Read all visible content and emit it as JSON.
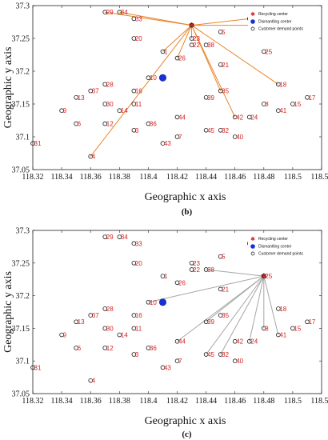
{
  "chart_data": [
    {
      "type": "scatter",
      "panel": "(b)",
      "xlabel": "Geographic x axis",
      "ylabel": "Geographic y axis",
      "xlim": [
        118.32,
        118.52
      ],
      "ylim": [
        37.05,
        37.3
      ],
      "xticks": [
        "118.32",
        "118.34",
        "118.36",
        "118.38",
        "118.4",
        "118.42",
        "118.44",
        "118.46",
        "118.48",
        "118.5",
        "118.52"
      ],
      "yticks": [
        "37.3",
        "37.25",
        "37.2",
        "37.15",
        "37.1",
        "37.05"
      ],
      "legend_placement": "top-right",
      "legend": [
        "Recycling center",
        "Dismantling center",
        "Customer demand points"
      ],
      "connection_color": "#e8852a",
      "recycling_center": [
        118.43,
        37.27
      ],
      "dismantling_center": [
        118.41,
        37.19
      ],
      "points": [
        {
          "l": "29",
          "x": 118.37,
          "y": 37.29
        },
        {
          "l": "34",
          "x": 118.38,
          "y": 37.29
        },
        {
          "l": "33",
          "x": 118.39,
          "y": 37.28
        },
        {
          "l": "19",
          "x": 118.47,
          "y": 37.28
        },
        {
          "l": "27",
          "x": 118.48,
          "y": 37.27
        },
        {
          "l": "20",
          "x": 118.39,
          "y": 37.25
        },
        {
          "l": "23",
          "x": 118.43,
          "y": 37.25
        },
        {
          "l": "5",
          "x": 118.45,
          "y": 37.26
        },
        {
          "l": "22",
          "x": 118.43,
          "y": 37.24
        },
        {
          "l": "38",
          "x": 118.44,
          "y": 37.24
        },
        {
          "l": "1",
          "x": 118.41,
          "y": 37.23
        },
        {
          "l": "26",
          "x": 118.42,
          "y": 37.22
        },
        {
          "l": "25",
          "x": 118.48,
          "y": 37.23
        },
        {
          "l": "21",
          "x": 118.45,
          "y": 37.21
        },
        {
          "l": "10",
          "x": 118.4,
          "y": 37.19
        },
        {
          "l": "18",
          "x": 118.49,
          "y": 37.18
        },
        {
          "l": "28",
          "x": 118.37,
          "y": 37.18
        },
        {
          "l": "37",
          "x": 118.36,
          "y": 37.17
        },
        {
          "l": "16",
          "x": 118.39,
          "y": 37.17
        },
        {
          "l": "35",
          "x": 118.45,
          "y": 37.17
        },
        {
          "l": "13",
          "x": 118.35,
          "y": 37.16
        },
        {
          "l": "30",
          "x": 118.37,
          "y": 37.15
        },
        {
          "l": "11",
          "x": 118.39,
          "y": 37.15
        },
        {
          "l": "39",
          "x": 118.44,
          "y": 37.16
        },
        {
          "l": "8",
          "x": 118.48,
          "y": 37.15
        },
        {
          "l": "41",
          "x": 118.49,
          "y": 37.14
        },
        {
          "l": "15",
          "x": 118.5,
          "y": 37.15
        },
        {
          "l": "17",
          "x": 118.51,
          "y": 37.16
        },
        {
          "l": "9",
          "x": 118.34,
          "y": 37.14
        },
        {
          "l": "14",
          "x": 118.38,
          "y": 37.14
        },
        {
          "l": "6",
          "x": 118.35,
          "y": 37.12
        },
        {
          "l": "12",
          "x": 118.37,
          "y": 37.12
        },
        {
          "l": "36",
          "x": 118.4,
          "y": 37.12
        },
        {
          "l": "44",
          "x": 118.42,
          "y": 37.13
        },
        {
          "l": "42",
          "x": 118.46,
          "y": 37.13
        },
        {
          "l": "24",
          "x": 118.47,
          "y": 37.13
        },
        {
          "l": "3",
          "x": 118.39,
          "y": 37.11
        },
        {
          "l": "45",
          "x": 118.44,
          "y": 37.11
        },
        {
          "l": "32",
          "x": 118.45,
          "y": 37.11
        },
        {
          "l": "7",
          "x": 118.42,
          "y": 37.1
        },
        {
          "l": "40",
          "x": 118.46,
          "y": 37.1
        },
        {
          "l": "31",
          "x": 118.32,
          "y": 37.09
        },
        {
          "l": "43",
          "x": 118.41,
          "y": 37.09
        },
        {
          "l": "4",
          "x": 118.36,
          "y": 37.07
        }
      ],
      "connections": [
        "29",
        "34",
        "19",
        "27",
        "18",
        "35",
        "42",
        "23",
        "26",
        "1",
        "4"
      ]
    },
    {
      "type": "scatter",
      "panel": "(c)",
      "xlabel": "Geographic x axis",
      "ylabel": "Geographic y axis",
      "xlim": [
        118.32,
        118.52
      ],
      "ylim": [
        37.05,
        37.3
      ],
      "xticks": [
        "118.32",
        "118.34",
        "118.36",
        "118.38",
        "118.4",
        "118.42",
        "118.44",
        "118.46",
        "118.48",
        "118.5",
        "118.52"
      ],
      "yticks": [
        "37.3",
        "37.25",
        "37.2",
        "37.15",
        "37.1",
        "37.05"
      ],
      "legend_placement": "top-right",
      "legend": [
        "Recycling center",
        "Dismantling center",
        "Customer demand points"
      ],
      "connection_color": "#a6a6a6",
      "recycling_center": [
        118.48,
        37.23
      ],
      "dismantling_center": [
        118.41,
        37.19
      ],
      "points": [
        {
          "l": "29",
          "x": 118.37,
          "y": 37.29
        },
        {
          "l": "34",
          "x": 118.38,
          "y": 37.29
        },
        {
          "l": "33",
          "x": 118.39,
          "y": 37.28
        },
        {
          "l": "19",
          "x": 118.47,
          "y": 37.28
        },
        {
          "l": "27",
          "x": 118.48,
          "y": 37.27
        },
        {
          "l": "20",
          "x": 118.39,
          "y": 37.25
        },
        {
          "l": "23",
          "x": 118.43,
          "y": 37.25
        },
        {
          "l": "5",
          "x": 118.45,
          "y": 37.26
        },
        {
          "l": "22",
          "x": 118.43,
          "y": 37.24
        },
        {
          "l": "38",
          "x": 118.44,
          "y": 37.24
        },
        {
          "l": "1",
          "x": 118.41,
          "y": 37.23
        },
        {
          "l": "26",
          "x": 118.42,
          "y": 37.22
        },
        {
          "l": "25",
          "x": 118.48,
          "y": 37.23
        },
        {
          "l": "21",
          "x": 118.45,
          "y": 37.21
        },
        {
          "l": "10",
          "x": 118.4,
          "y": 37.19
        },
        {
          "l": "18",
          "x": 118.49,
          "y": 37.18
        },
        {
          "l": "28",
          "x": 118.37,
          "y": 37.18
        },
        {
          "l": "37",
          "x": 118.36,
          "y": 37.17
        },
        {
          "l": "16",
          "x": 118.39,
          "y": 37.17
        },
        {
          "l": "35",
          "x": 118.45,
          "y": 37.17
        },
        {
          "l": "13",
          "x": 118.35,
          "y": 37.16
        },
        {
          "l": "30",
          "x": 118.37,
          "y": 37.15
        },
        {
          "l": "11",
          "x": 118.39,
          "y": 37.15
        },
        {
          "l": "39",
          "x": 118.44,
          "y": 37.16
        },
        {
          "l": "8",
          "x": 118.48,
          "y": 37.15
        },
        {
          "l": "41",
          "x": 118.49,
          "y": 37.14
        },
        {
          "l": "15",
          "x": 118.5,
          "y": 37.15
        },
        {
          "l": "17",
          "x": 118.51,
          "y": 37.16
        },
        {
          "l": "9",
          "x": 118.34,
          "y": 37.14
        },
        {
          "l": "14",
          "x": 118.38,
          "y": 37.14
        },
        {
          "l": "6",
          "x": 118.35,
          "y": 37.12
        },
        {
          "l": "12",
          "x": 118.37,
          "y": 37.12
        },
        {
          "l": "36",
          "x": 118.4,
          "y": 37.12
        },
        {
          "l": "44",
          "x": 118.42,
          "y": 37.13
        },
        {
          "l": "42",
          "x": 118.46,
          "y": 37.13
        },
        {
          "l": "24",
          "x": 118.47,
          "y": 37.13
        },
        {
          "l": "3",
          "x": 118.39,
          "y": 37.11
        },
        {
          "l": "45",
          "x": 118.44,
          "y": 37.11
        },
        {
          "l": "32",
          "x": 118.45,
          "y": 37.11
        },
        {
          "l": "7",
          "x": 118.42,
          "y": 37.1
        },
        {
          "l": "40",
          "x": 118.46,
          "y": 37.1
        },
        {
          "l": "31",
          "x": 118.32,
          "y": 37.09
        },
        {
          "l": "43",
          "x": 118.41,
          "y": 37.09
        },
        {
          "l": "4",
          "x": 118.36,
          "y": 37.07
        }
      ],
      "connections": [
        "38",
        "10",
        "39",
        "44",
        "45",
        "32",
        "24",
        "8",
        "41"
      ]
    }
  ]
}
